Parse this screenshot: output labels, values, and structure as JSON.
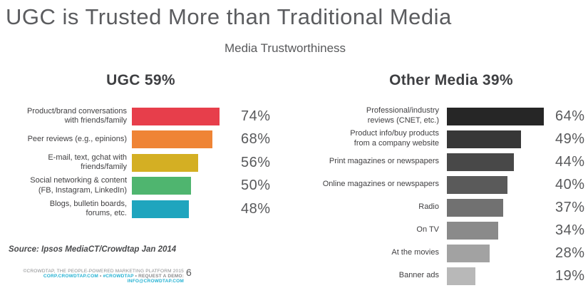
{
  "page": {
    "title": "UGC is Trusted More than Traditional Media",
    "subtitle": "Media Trustworthiness",
    "source_note": "Source: Ipsos MediaCT/Crowdtap Jan 2014",
    "page_number": "6"
  },
  "footer": {
    "copyright": "©CROWDTAP, THE PEOPLE-POWERED MARKETING PLATFORM 2015",
    "site_link": "CORP.CROWDTAP.COM",
    "hashtag_link": "#CROWDTAP",
    "demo_label": "REQUEST A DEMO:",
    "demo_email_link": "INFO@CROWDTAP.COM",
    "separator": "•"
  },
  "colors": {
    "accent_cyan": "#25b2d3",
    "title_gray": "#5b5c5f",
    "text_dark": "#414042",
    "value_gray": "#58595b"
  },
  "chart_data": [
    {
      "type": "bar",
      "orientation": "horizontal",
      "title": "UGC 59%",
      "categories": [
        "Product/brand conversations\nwith friends/family",
        "Peer reviews (e.g., epinions)",
        "E-mail, text, gchat with\nfriends/family",
        "Social networking & content\n(FB, Instagram, LinkedIn)",
        "Blogs, bulletin boards,\nforums, etc."
      ],
      "values": [
        74,
        68,
        56,
        50,
        48
      ],
      "value_labels": [
        "74%",
        "68%",
        "56%",
        "50%",
        "48%"
      ],
      "colors": [
        "#e73e4b",
        "#ef8435",
        "#d4af23",
        "#4fb56f",
        "#1fa5be"
      ],
      "value_suffix": "%",
      "xlim": [
        0,
        100
      ],
      "grid": false,
      "legend": "none"
    },
    {
      "type": "bar",
      "orientation": "horizontal",
      "title": "Other Media 39%",
      "categories": [
        "Professional/industry\nreviews (CNET, etc.)",
        "Product info/buy products\nfrom a company website",
        "Print magazines or newspapers",
        "Online magazines or newspapers",
        "Radio",
        "On TV",
        "At the movies",
        "Banner ads"
      ],
      "values": [
        64,
        49,
        44,
        40,
        37,
        34,
        28,
        19
      ],
      "value_labels": [
        "64%",
        "49%",
        "44%",
        "40%",
        "37%",
        "34%",
        "28%",
        "19%"
      ],
      "colors": [
        "#262626",
        "#373737",
        "#484848",
        "#5a5a5a",
        "#717171",
        "#8a8a8a",
        "#a2a2a2",
        "#b8b8b8"
      ],
      "value_suffix": "%",
      "xlim": [
        0,
        100
      ],
      "grid": false,
      "legend": "none"
    }
  ]
}
